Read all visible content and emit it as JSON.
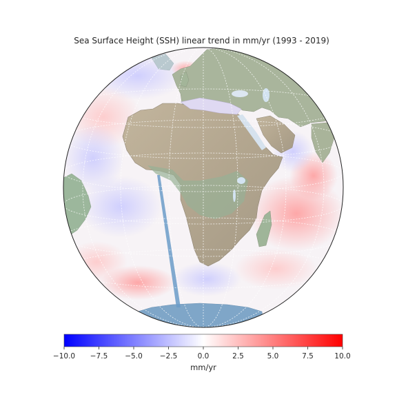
{
  "title": "Sea Surface Height (SSH) linear trend in mm/yr (1993 - 2019)",
  "colorbar": {
    "label": "mm/yr",
    "min": -10.0,
    "max": 10.0,
    "ticks": [
      "−10.0",
      "−7.5",
      "−5.0",
      "−2.5",
      "0.0",
      "2.5",
      "5.0",
      "7.5",
      "10.0"
    ],
    "colormap": "bwr",
    "colors": {
      "low": "#0000ff",
      "mid": "#ffffff",
      "high": "#ff0000"
    }
  },
  "map": {
    "projection": "orthographic",
    "center": "Africa",
    "gridlines": true,
    "colors": {
      "land": "#b6ad98",
      "land_green": "#8fb59a",
      "ice": "#7fa6c8",
      "lakes": "#c9ddee",
      "gridline": "#ffffff"
    }
  }
}
